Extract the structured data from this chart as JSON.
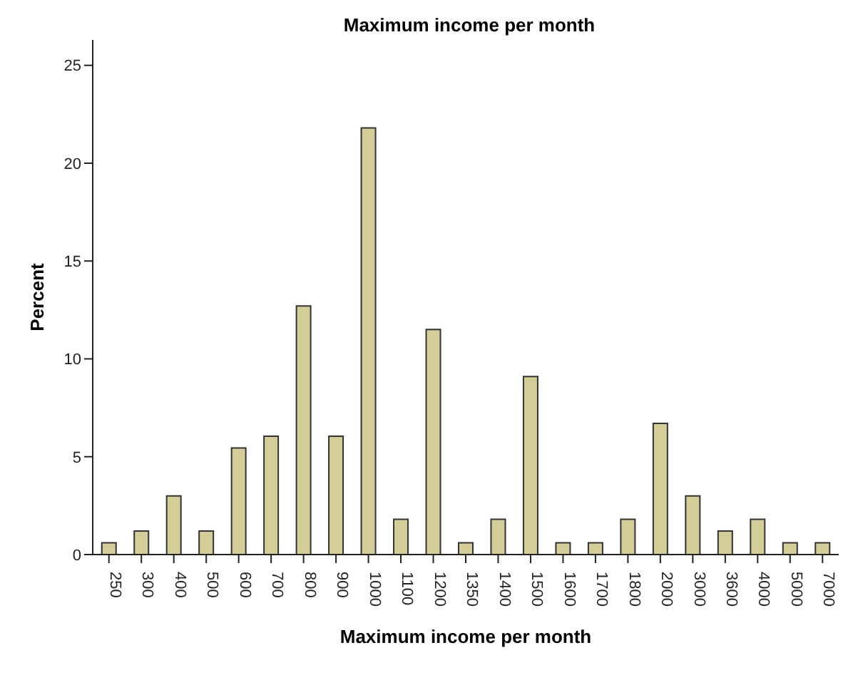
{
  "chart_data": {
    "type": "bar",
    "title": "Maximum income per month",
    "xlabel": "Maximum income per month",
    "ylabel": "Percent",
    "categories": [
      "250",
      "300",
      "400",
      "500",
      "600",
      "700",
      "800",
      "900",
      "1000",
      "1100",
      "1200",
      "1350",
      "1400",
      "1500",
      "1600",
      "1700",
      "1800",
      "2000",
      "3000",
      "3600",
      "4000",
      "5000",
      "7000"
    ],
    "values": [
      0.6,
      1.2,
      3.0,
      1.2,
      5.45,
      6.05,
      12.7,
      6.05,
      21.8,
      1.8,
      11.5,
      0.6,
      1.8,
      9.1,
      0.6,
      0.6,
      1.8,
      6.7,
      3.0,
      1.2,
      1.8,
      0.6,
      0.6
    ],
    "color": "#d3ce98",
    "ylim": [
      0,
      26.3
    ],
    "yticks": [
      0,
      5,
      10,
      15,
      20,
      25
    ],
    "grid": false,
    "legend": false
  }
}
